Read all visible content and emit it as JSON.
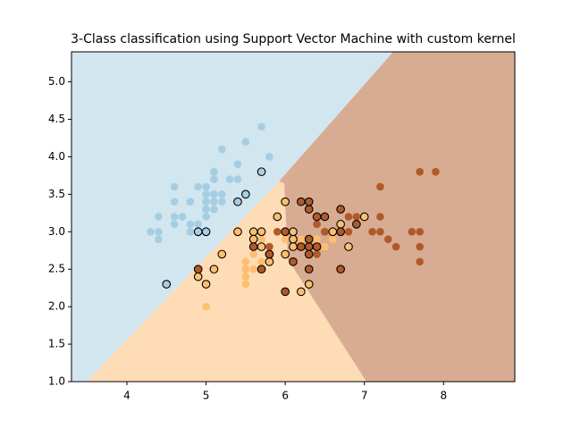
{
  "chart_data": {
    "type": "scatter",
    "title": "3-Class classification using Support Vector Machine with custom kernel",
    "xlim": [
      3.3,
      8.9
    ],
    "ylim": [
      1.0,
      5.4
    ],
    "xticks": [
      4,
      5,
      6,
      7,
      8
    ],
    "yticks": [
      {
        "value": 1.0,
        "label": "1.0"
      },
      {
        "value": 1.5,
        "label": "1.5"
      },
      {
        "value": 2.0,
        "label": "2.0"
      },
      {
        "value": 2.5,
        "label": "2.5"
      },
      {
        "value": 3.0,
        "label": "3.0"
      },
      {
        "value": 3.5,
        "label": "3.5"
      },
      {
        "value": 4.0,
        "label": "4.0"
      },
      {
        "value": 4.5,
        "label": "4.5"
      },
      {
        "value": 5.0,
        "label": "5.0"
      }
    ],
    "series": [
      {
        "color": "#a6cee3",
        "edgecolor": null,
        "x": [
          5.1,
          4.7,
          4.6,
          5.0,
          5.4,
          4.6,
          5.0,
          4.4,
          4.9,
          5.4,
          4.8,
          4.8,
          4.3,
          5.8,
          5.7,
          5.4,
          5.1,
          5.1,
          5.4,
          5.1,
          4.6,
          5.1,
          4.8,
          5.0,
          5.2,
          5.2,
          4.7,
          4.8,
          5.2,
          5.5,
          4.9,
          5.0,
          4.9,
          4.4,
          5.1,
          5.0,
          4.4,
          5.0,
          5.1,
          4.8,
          5.1,
          4.6,
          5.3,
          5.0
        ],
        "y": [
          3.5,
          3.2,
          3.1,
          3.6,
          3.9,
          3.4,
          3.4,
          2.9,
          3.1,
          3.7,
          3.4,
          3.0,
          3.0,
          4.0,
          4.4,
          3.9,
          3.5,
          3.8,
          3.4,
          3.7,
          3.6,
          3.3,
          3.4,
          3.4,
          3.5,
          3.4,
          3.2,
          3.1,
          4.1,
          4.2,
          3.1,
          3.2,
          3.6,
          3.0,
          3.4,
          3.5,
          3.2,
          3.5,
          3.8,
          3.0,
          3.8,
          3.2,
          3.7,
          3.3
        ]
      },
      {
        "color": "#fdbf6f",
        "edgecolor": null,
        "x": [
          6.4,
          6.9,
          5.5,
          6.5,
          6.3,
          6.6,
          5.0,
          5.9,
          6.0,
          6.7,
          5.6,
          5.8,
          5.6,
          6.3,
          6.4,
          6.7,
          6.0,
          5.7,
          5.5,
          5.5,
          5.5,
          5.5,
          5.6,
          5.7,
          6.2,
          5.7
        ],
        "y": [
          3.2,
          3.1,
          2.3,
          2.8,
          3.3,
          2.9,
          2.0,
          3.0,
          2.2,
          3.1,
          3.0,
          2.7,
          2.5,
          2.5,
          2.9,
          3.0,
          2.9,
          2.6,
          2.4,
          2.4,
          2.5,
          2.6,
          2.7,
          2.9,
          2.9,
          2.8
        ]
      },
      {
        "color": "#b15928",
        "edgecolor": null,
        "x": [
          5.8,
          7.1,
          6.5,
          7.6,
          7.3,
          7.2,
          6.4,
          6.8,
          5.8,
          6.5,
          7.7,
          7.7,
          6.9,
          7.7,
          7.2,
          6.1,
          7.2,
          7.4,
          7.9,
          6.4,
          7.7,
          6.4,
          6.9,
          6.7,
          6.8,
          6.7,
          6.3,
          6.5,
          5.9
        ],
        "y": [
          2.7,
          3.0,
          3.0,
          3.0,
          2.9,
          3.6,
          2.7,
          3.0,
          2.8,
          3.0,
          3.8,
          2.6,
          3.2,
          2.8,
          3.2,
          3.0,
          3.0,
          2.8,
          3.8,
          2.8,
          3.0,
          3.1,
          3.1,
          3.1,
          3.2,
          3.3,
          2.5,
          3.0,
          3.0
        ]
      },
      {
        "color": "#a6cee3",
        "edgecolor": "#000000",
        "x": [
          4.5,
          5.7,
          5.5,
          5.4,
          4.9,
          5.0
        ],
        "y": [
          2.3,
          3.8,
          3.5,
          3.4,
          3.0,
          3.0
        ]
      },
      {
        "color": "#fdbf6f",
        "edgecolor": "#000000",
        "x": [
          6.0,
          5.6,
          5.7,
          6.1,
          6.6,
          6.7,
          6.0,
          5.8,
          5.6,
          5.7,
          6.1,
          6.3,
          5.0,
          5.1,
          4.9,
          5.2,
          6.2,
          5.4,
          6.1,
          6.8,
          5.8,
          5.9,
          7.0
        ],
        "y": [
          3.4,
          3.0,
          2.8,
          2.9,
          3.0,
          3.1,
          2.7,
          2.6,
          2.9,
          3.0,
          2.8,
          2.3,
          2.3,
          2.5,
          2.4,
          2.7,
          2.2,
          3.0,
          3.0,
          2.8,
          2.7,
          3.2,
          3.2
        ]
      },
      {
        "color": "#b15928",
        "edgecolor": "#000000",
        "x": [
          4.9,
          5.7,
          6.3,
          6.7,
          6.2,
          6.3,
          6.4,
          6.5,
          6.0,
          6.3,
          6.7,
          6.4,
          6.3,
          6.2,
          6.3,
          5.6,
          5.8,
          6.1,
          6.3,
          6.0,
          6.7,
          6.9
        ],
        "y": [
          2.5,
          2.5,
          3.3,
          3.3,
          3.4,
          3.4,
          3.2,
          3.2,
          2.2,
          2.5,
          2.5,
          2.8,
          2.8,
          2.8,
          2.9,
          2.8,
          2.7,
          2.6,
          2.7,
          3.0,
          3.0,
          3.1
        ]
      }
    ]
  }
}
